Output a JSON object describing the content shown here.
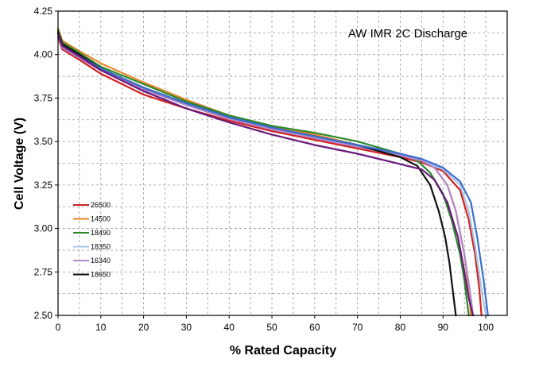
{
  "chart_data": {
    "type": "line",
    "title": "AW IMR 2C Discharge",
    "xlabel": "% Rated Capacity",
    "ylabel": "Cell Voltage (V)",
    "xlim": [
      0,
      105
    ],
    "ylim": [
      2.5,
      4.25
    ],
    "x_ticks": [
      "0",
      "10",
      "20",
      "30",
      "40",
      "50",
      "60",
      "70",
      "80",
      "90",
      "100"
    ],
    "y_ticks": [
      "2.50",
      "2.75",
      "3.00",
      "3.25",
      "3.50",
      "3.75",
      "4.00",
      "4.25"
    ],
    "grid": true,
    "legend_position": "lower-left",
    "series": [
      {
        "name": "26500",
        "color": "#d42020",
        "x": [
          0,
          1,
          5,
          10,
          20,
          30,
          40,
          50,
          60,
          70,
          80,
          85,
          90,
          94,
          96,
          97.5,
          98.5,
          99
        ],
        "y": [
          4.1,
          4.03,
          3.97,
          3.89,
          3.77,
          3.69,
          3.62,
          3.56,
          3.51,
          3.46,
          3.41,
          3.38,
          3.33,
          3.22,
          3.05,
          2.85,
          2.65,
          2.5
        ]
      },
      {
        "name": "14500",
        "color": "#e8862a",
        "x": [
          0,
          1,
          5,
          10,
          20,
          30,
          40,
          50,
          60,
          70,
          80,
          85,
          88,
          91,
          93,
          95,
          96,
          96.5
        ],
        "y": [
          4.15,
          4.08,
          4.02,
          3.95,
          3.84,
          3.74,
          3.65,
          3.59,
          3.54,
          3.48,
          3.43,
          3.39,
          3.35,
          3.25,
          3.1,
          2.85,
          2.65,
          2.5
        ]
      },
      {
        "name": "18490",
        "color": "#2a8a2a",
        "x": [
          0,
          1,
          5,
          10,
          20,
          30,
          40,
          50,
          60,
          70,
          80,
          84,
          87,
          90,
          92,
          94,
          95,
          96
        ],
        "y": [
          4.14,
          4.07,
          4.01,
          3.93,
          3.83,
          3.73,
          3.65,
          3.59,
          3.55,
          3.5,
          3.43,
          3.39,
          3.32,
          3.2,
          3.05,
          2.85,
          2.7,
          2.5
        ]
      },
      {
        "name": "18350",
        "color": "#a8c4e8",
        "x": [
          0,
          1,
          5,
          10,
          20,
          30,
          40,
          50,
          60,
          70,
          80,
          85,
          90,
          94,
          96,
          97.5,
          99,
          100
        ],
        "y": [
          4.12,
          4.05,
          3.99,
          3.92,
          3.8,
          3.71,
          3.63,
          3.57,
          3.52,
          3.47,
          3.42,
          3.39,
          3.34,
          3.25,
          3.1,
          2.9,
          2.65,
          2.5
        ]
      },
      {
        "name": "16340",
        "color": "#b088c8",
        "x": [
          0,
          1,
          5,
          10,
          20,
          30,
          40,
          50,
          60,
          70,
          80,
          85,
          88,
          91,
          93,
          95,
          96.5,
          97
        ],
        "y": [
          4.12,
          4.04,
          3.98,
          3.91,
          3.8,
          3.71,
          3.63,
          3.57,
          3.52,
          3.47,
          3.42,
          3.39,
          3.35,
          3.25,
          3.1,
          2.85,
          2.6,
          2.5
        ]
      },
      {
        "name": "18650",
        "color": "#111111",
        "x": [
          0,
          1,
          5,
          10,
          20,
          30,
          40,
          50,
          60,
          70,
          80,
          84,
          87,
          89,
          90.5,
          91.5,
          92.5,
          93
        ],
        "y": [
          4.13,
          4.06,
          4.0,
          3.92,
          3.81,
          3.72,
          3.64,
          3.58,
          3.53,
          3.48,
          3.41,
          3.36,
          3.25,
          3.1,
          2.95,
          2.8,
          2.6,
          2.5
        ]
      },
      {
        "name": "",
        "color": "#3a6fd0",
        "x": [
          0,
          1,
          5,
          10,
          20,
          30,
          40,
          50,
          60,
          70,
          80,
          85,
          90,
          94,
          96.5,
          98,
          99.5,
          100.5
        ],
        "y": [
          4.12,
          4.05,
          3.99,
          3.92,
          3.81,
          3.72,
          3.64,
          3.58,
          3.53,
          3.48,
          3.43,
          3.4,
          3.35,
          3.27,
          3.15,
          2.95,
          2.7,
          2.5
        ]
      },
      {
        "name": "",
        "color": "#6a1a7a",
        "x": [
          0,
          1,
          5,
          10,
          20,
          30,
          40,
          50,
          60,
          70,
          80,
          85,
          88,
          91,
          93.5,
          95,
          96,
          97
        ],
        "y": [
          4.12,
          4.05,
          3.99,
          3.91,
          3.79,
          3.69,
          3.61,
          3.54,
          3.48,
          3.43,
          3.37,
          3.34,
          3.28,
          3.15,
          2.95,
          2.75,
          2.6,
          2.5
        ]
      }
    ]
  }
}
